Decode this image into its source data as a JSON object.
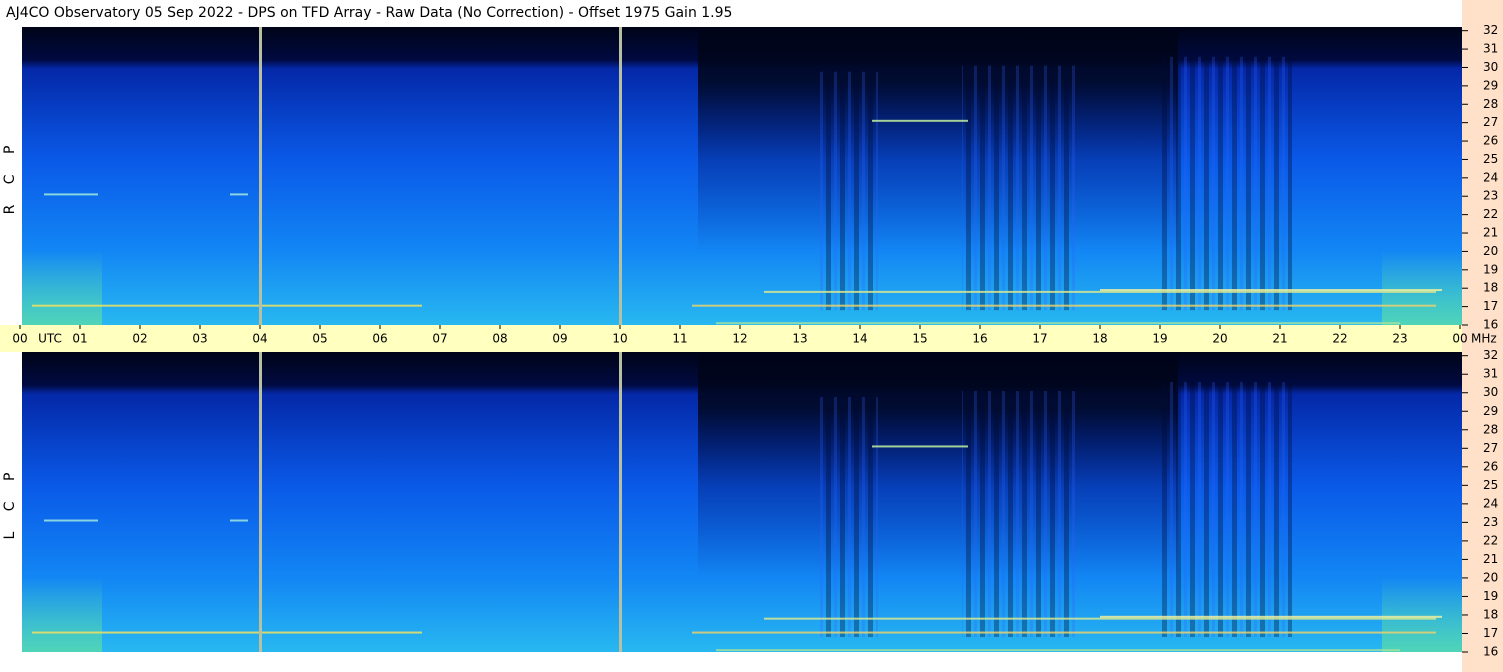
{
  "title": "AJ4CO Observatory  05 Sep 2022  -  DPS on TFD Array  -  Raw Data (No Correction)  -  Offset 1975  Gain 1.95",
  "chart_data": [
    {
      "type": "spectrogram",
      "panel_label": "R C P",
      "x_label": "UTC",
      "y_label": "MHz",
      "xlim": [
        0,
        24
      ],
      "xticks": [
        {
          "value": 0,
          "label": "00"
        },
        {
          "value": 1,
          "label": "01"
        },
        {
          "value": 2,
          "label": "02"
        },
        {
          "value": 3,
          "label": "03"
        },
        {
          "value": 4,
          "label": "04"
        },
        {
          "value": 5,
          "label": "05"
        },
        {
          "value": 6,
          "label": "06"
        },
        {
          "value": 7,
          "label": "07"
        },
        {
          "value": 8,
          "label": "08"
        },
        {
          "value": 9,
          "label": "09"
        },
        10,
        11,
        12,
        13,
        14,
        15,
        16,
        17,
        18,
        19,
        20,
        21,
        22,
        23,
        {
          "value": 24,
          "label": "00"
        }
      ],
      "ylim": [
        16,
        32.2
      ],
      "yticks": [
        16,
        17,
        18,
        19,
        20,
        21,
        22,
        23,
        24,
        25,
        26,
        27,
        28,
        29,
        30,
        31,
        32
      ]
    },
    {
      "type": "spectrogram",
      "panel_label": "L C P",
      "xlim": [
        0,
        24
      ],
      "ylim": [
        16,
        32.2
      ],
      "yticks": [
        16,
        17,
        18,
        19,
        20,
        21,
        22,
        23,
        24,
        25,
        26,
        27,
        28,
        29,
        30,
        31,
        32
      ]
    }
  ]
}
